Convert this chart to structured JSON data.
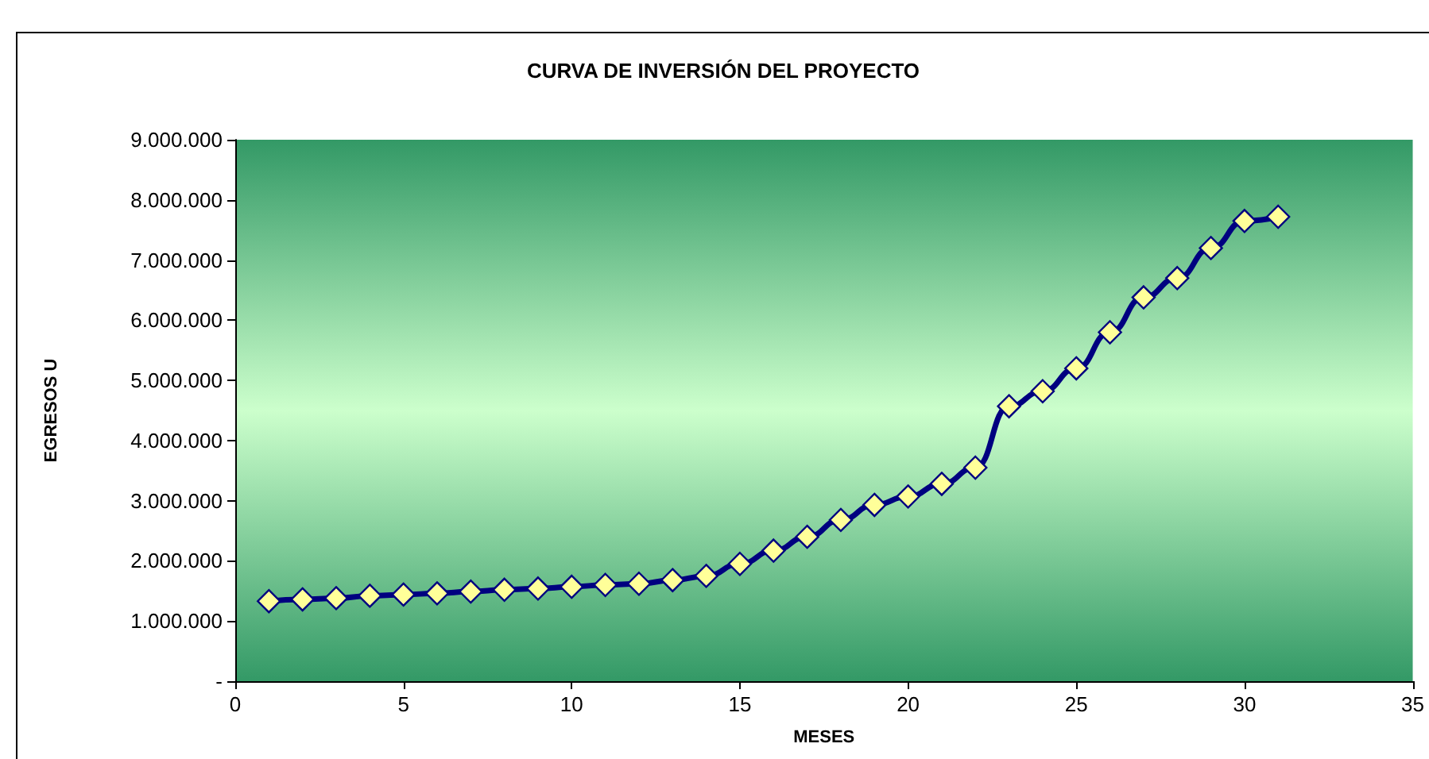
{
  "chart_data": {
    "type": "line",
    "title": "CURVA DE INVERSIÓN DEL PROYECTO",
    "xlabel": "MESES",
    "ylabel": "EGRESOS U",
    "x": [
      1,
      2,
      3,
      4,
      5,
      6,
      7,
      8,
      9,
      10,
      11,
      12,
      13,
      14,
      15,
      16,
      17,
      18,
      19,
      20,
      21,
      22,
      23,
      24,
      25,
      26,
      27,
      28,
      29,
      30,
      31
    ],
    "series": [
      {
        "color": "#000080",
        "values": [
          1330000,
          1360000,
          1380000,
          1420000,
          1440000,
          1460000,
          1490000,
          1520000,
          1540000,
          1570000,
          1600000,
          1620000,
          1680000,
          1750000,
          1950000,
          2170000,
          2400000,
          2680000,
          2930000,
          3070000,
          3280000,
          3550000,
          4570000,
          4820000,
          5200000,
          5800000,
          6380000,
          6700000,
          7200000,
          7650000,
          7720000
        ]
      }
    ],
    "xlim": [
      0,
      35
    ],
    "xticks": [
      0,
      5,
      10,
      15,
      20,
      25,
      30,
      35
    ],
    "ylim": [
      0,
      9000000
    ],
    "yticks": [
      {
        "value": 0,
        "label": "-"
      },
      {
        "value": 1000000,
        "label": "1.000.000"
      },
      {
        "value": 2000000,
        "label": "2.000.000"
      },
      {
        "value": 3000000,
        "label": "3.000.000"
      },
      {
        "value": 4000000,
        "label": "4.000.000"
      },
      {
        "value": 5000000,
        "label": "5.000.000"
      },
      {
        "value": 6000000,
        "label": "6.000.000"
      },
      {
        "value": 7000000,
        "label": "7.000.000"
      },
      {
        "value": 8000000,
        "label": "8.000.000"
      },
      {
        "value": 9000000,
        "label": "9.000.000"
      }
    ],
    "marker": "diamond",
    "line_style": "solid",
    "grid": false
  }
}
